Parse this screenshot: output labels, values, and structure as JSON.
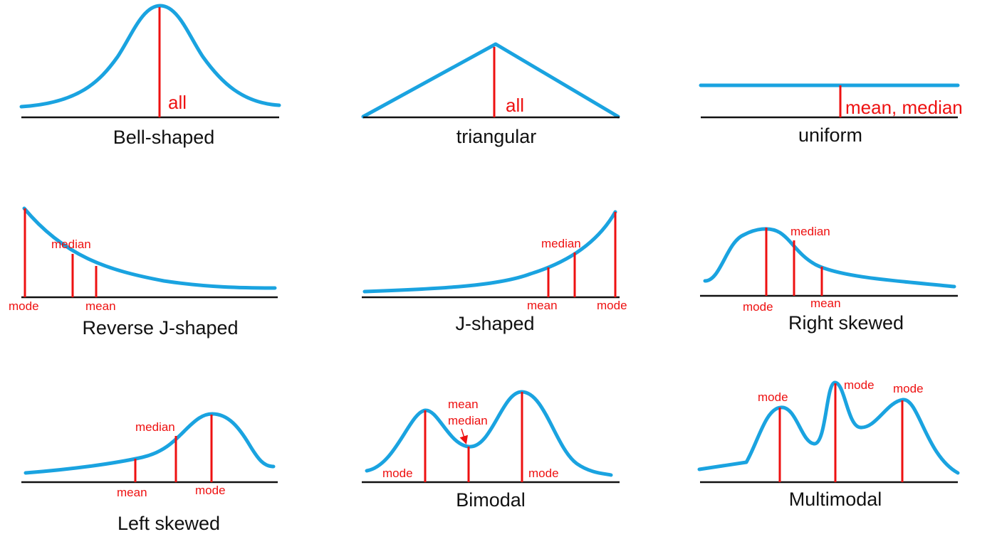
{
  "diagrams": {
    "bell": {
      "caption": "Bell-shaped",
      "label": "all"
    },
    "triangular": {
      "caption": "triangular",
      "label": "all"
    },
    "uniform": {
      "caption": "uniform",
      "label": "mean, median"
    },
    "reverse_j": {
      "caption": "Reverse J-shaped",
      "mode": "mode",
      "median": "median",
      "mean": "mean"
    },
    "j_shaped": {
      "caption": "J-shaped",
      "mean": "mean",
      "median": "median",
      "mode": "mode"
    },
    "right_skewed": {
      "caption": "Right skewed",
      "mode": "mode",
      "median": "median",
      "mean": "mean"
    },
    "left_skewed": {
      "caption": "Left skewed",
      "mean": "mean",
      "median": "median",
      "mode": "mode"
    },
    "bimodal": {
      "caption": "Bimodal",
      "mode_left": "mode",
      "mean": "mean",
      "median": "median",
      "mode_right": "mode"
    },
    "multimodal": {
      "caption": "Multimodal",
      "mode_1": "mode",
      "mode_2": "mode",
      "mode_3": "mode"
    }
  },
  "colors": {
    "curve": "#1aa3e0",
    "marker": "#ee1111",
    "axis": "#111111"
  }
}
